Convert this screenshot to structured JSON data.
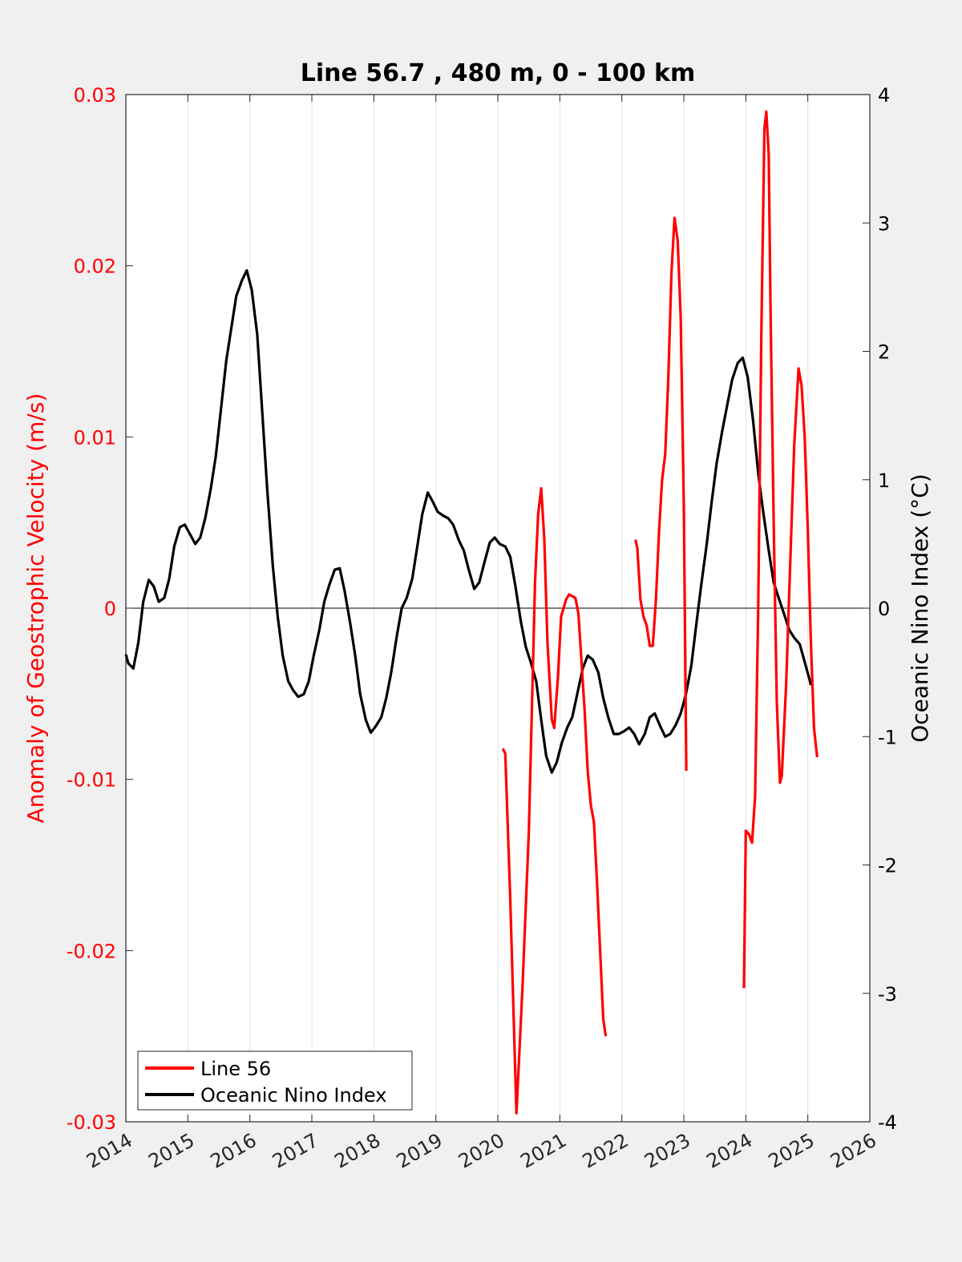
{
  "chart_data": {
    "type": "line",
    "title": "Line 56.7 , 480 m, 0 - 100 km",
    "xlim": [
      2014,
      2026
    ],
    "x_ticks": [
      "2014",
      "2015",
      "2016",
      "2017",
      "2018",
      "2019",
      "2020",
      "2021",
      "2022",
      "2023",
      "2024",
      "2025",
      "2026"
    ],
    "left_axis": {
      "label": "Anomaly of Geostrophic Velocity (m/s)",
      "color": "#ff0000",
      "ylim": [
        -0.03,
        0.03
      ],
      "ticks": [
        "-0.03",
        "-0.02",
        "-0.01",
        "0",
        "0.01",
        "0.02",
        "0.03"
      ]
    },
    "right_axis": {
      "label": "Oceanic Nino Index (°C)",
      "color": "#000000",
      "ylim": [
        -4,
        4
      ],
      "ticks": [
        "-4",
        "-3",
        "-2",
        "-1",
        "0",
        "1",
        "2",
        "3",
        "4"
      ]
    },
    "grid": "vertical",
    "zero_line": true,
    "legend": {
      "position": "bottom-left",
      "entries": [
        {
          "name": "Line 56",
          "color": "#ff0000"
        },
        {
          "name": "Oceanic Nino Index",
          "color": "#000000"
        }
      ]
    },
    "series": [
      {
        "name": "Line 56",
        "axis": "left",
        "color": "#ff0000",
        "segments": [
          [
            [
              2020.08,
              -0.0082
            ],
            [
              2020.12,
              -0.0085
            ],
            [
              2020.2,
              -0.017
            ],
            [
              2020.3,
              -0.0295
            ],
            [
              2020.4,
              -0.022
            ],
            [
              2020.5,
              -0.013
            ],
            [
              2020.6,
              0.0015
            ],
            [
              2020.65,
              0.0055
            ],
            [
              2020.7,
              0.007
            ],
            [
              2020.75,
              0.004
            ],
            [
              2020.8,
              -0.002
            ],
            [
              2020.87,
              -0.0065
            ],
            [
              2020.91,
              -0.007
            ],
            [
              2020.97,
              -0.004
            ],
            [
              2021.02,
              -0.0005
            ],
            [
              2021.1,
              0.0005
            ],
            [
              2021.15,
              0.0008
            ],
            [
              2021.2,
              0.0007
            ],
            [
              2021.25,
              0.0006
            ],
            [
              2021.3,
              -0.0003
            ],
            [
              2021.4,
              -0.006
            ],
            [
              2021.45,
              -0.0095
            ],
            [
              2021.5,
              -0.0115
            ],
            [
              2021.55,
              -0.0125
            ],
            [
              2021.6,
              -0.016
            ],
            [
              2021.7,
              -0.024
            ],
            [
              2021.74,
              -0.025
            ]
          ],
          [
            [
              2022.22,
              0.004
            ],
            [
              2022.25,
              0.0035
            ],
            [
              2022.3,
              0.0005
            ],
            [
              2022.35,
              -0.0005
            ],
            [
              2022.4,
              -0.001
            ],
            [
              2022.45,
              -0.0022
            ],
            [
              2022.5,
              -0.0022
            ],
            [
              2022.55,
              0.0005
            ],
            [
              2022.6,
              0.0045
            ],
            [
              2022.65,
              0.0075
            ],
            [
              2022.7,
              0.009
            ],
            [
              2022.75,
              0.0135
            ],
            [
              2022.8,
              0.0195
            ],
            [
              2022.85,
              0.0228
            ],
            [
              2022.9,
              0.0215
            ],
            [
              2022.95,
              0.017
            ],
            [
              2023.0,
              0.006
            ],
            [
              2023.04,
              -0.0095
            ]
          ],
          [
            [
              2023.97,
              -0.0222
            ],
            [
              2024.0,
              -0.013
            ],
            [
              2024.05,
              -0.0132
            ],
            [
              2024.1,
              -0.0137
            ],
            [
              2024.15,
              -0.011
            ],
            [
              2024.2,
              0.0
            ],
            [
              2024.25,
              0.016
            ],
            [
              2024.3,
              0.028
            ],
            [
              2024.33,
              0.029
            ],
            [
              2024.37,
              0.0265
            ],
            [
              2024.4,
              0.017
            ],
            [
              2024.45,
              0.005
            ],
            [
              2024.5,
              -0.0055
            ],
            [
              2024.55,
              -0.0102
            ],
            [
              2024.58,
              -0.0098
            ],
            [
              2024.65,
              -0.0045
            ],
            [
              2024.72,
              0.003
            ],
            [
              2024.78,
              0.0095
            ],
            [
              2024.85,
              0.014
            ],
            [
              2024.9,
              0.013
            ],
            [
              2024.95,
              0.01
            ],
            [
              2025.0,
              0.0045
            ],
            [
              2025.05,
              -0.002
            ],
            [
              2025.1,
              -0.007
            ],
            [
              2025.15,
              -0.0087
            ]
          ]
        ]
      },
      {
        "name": "Oceanic Nino Index",
        "axis": "right",
        "color": "#000000",
        "points": [
          [
            2014.0,
            -0.36
          ],
          [
            2014.04,
            -0.43
          ],
          [
            2014.12,
            -0.47
          ],
          [
            2014.2,
            -0.27
          ],
          [
            2014.28,
            0.05
          ],
          [
            2014.37,
            0.22
          ],
          [
            2014.45,
            0.17
          ],
          [
            2014.53,
            0.05
          ],
          [
            2014.62,
            0.08
          ],
          [
            2014.7,
            0.23
          ],
          [
            2014.78,
            0.48
          ],
          [
            2014.87,
            0.63
          ],
          [
            2014.95,
            0.65
          ],
          [
            2015.03,
            0.58
          ],
          [
            2015.12,
            0.5
          ],
          [
            2015.2,
            0.55
          ],
          [
            2015.28,
            0.7
          ],
          [
            2015.37,
            0.93
          ],
          [
            2015.45,
            1.18
          ],
          [
            2015.53,
            1.53
          ],
          [
            2015.62,
            1.93
          ],
          [
            2015.7,
            2.18
          ],
          [
            2015.78,
            2.43
          ],
          [
            2015.87,
            2.55
          ],
          [
            2015.95,
            2.63
          ],
          [
            2016.03,
            2.48
          ],
          [
            2016.12,
            2.13
          ],
          [
            2016.2,
            1.53
          ],
          [
            2016.28,
            0.93
          ],
          [
            2016.37,
            0.33
          ],
          [
            2016.45,
            -0.07
          ],
          [
            2016.53,
            -0.37
          ],
          [
            2016.62,
            -0.57
          ],
          [
            2016.7,
            -0.64
          ],
          [
            2016.78,
            -0.69
          ],
          [
            2016.87,
            -0.67
          ],
          [
            2016.95,
            -0.57
          ],
          [
            2017.03,
            -0.37
          ],
          [
            2017.12,
            -0.17
          ],
          [
            2017.2,
            0.05
          ],
          [
            2017.28,
            0.18
          ],
          [
            2017.37,
            0.3
          ],
          [
            2017.45,
            0.31
          ],
          [
            2017.53,
            0.13
          ],
          [
            2017.62,
            -0.12
          ],
          [
            2017.7,
            -0.37
          ],
          [
            2017.78,
            -0.67
          ],
          [
            2017.87,
            -0.87
          ],
          [
            2017.95,
            -0.97
          ],
          [
            2018.03,
            -0.92
          ],
          [
            2018.12,
            -0.85
          ],
          [
            2018.2,
            -0.7
          ],
          [
            2018.28,
            -0.5
          ],
          [
            2018.37,
            -0.22
          ],
          [
            2018.45,
            0.0
          ],
          [
            2018.53,
            0.08
          ],
          [
            2018.62,
            0.23
          ],
          [
            2018.7,
            0.48
          ],
          [
            2018.78,
            0.73
          ],
          [
            2018.87,
            0.9
          ],
          [
            2018.95,
            0.83
          ],
          [
            2019.03,
            0.75
          ],
          [
            2019.12,
            0.72
          ],
          [
            2019.2,
            0.7
          ],
          [
            2019.28,
            0.65
          ],
          [
            2019.37,
            0.53
          ],
          [
            2019.45,
            0.45
          ],
          [
            2019.53,
            0.3
          ],
          [
            2019.62,
            0.15
          ],
          [
            2019.7,
            0.2
          ],
          [
            2019.78,
            0.35
          ],
          [
            2019.87,
            0.51
          ],
          [
            2019.95,
            0.55
          ],
          [
            2020.03,
            0.5
          ],
          [
            2020.12,
            0.48
          ],
          [
            2020.2,
            0.4
          ],
          [
            2020.28,
            0.18
          ],
          [
            2020.37,
            -0.1
          ],
          [
            2020.45,
            -0.3
          ],
          [
            2020.53,
            -0.42
          ],
          [
            2020.62,
            -0.57
          ],
          [
            2020.7,
            -0.87
          ],
          [
            2020.78,
            -1.15
          ],
          [
            2020.87,
            -1.28
          ],
          [
            2020.95,
            -1.2
          ],
          [
            2021.03,
            -1.05
          ],
          [
            2021.12,
            -0.93
          ],
          [
            2021.2,
            -0.85
          ],
          [
            2021.28,
            -0.67
          ],
          [
            2021.37,
            -0.47
          ],
          [
            2021.45,
            -0.37
          ],
          [
            2021.53,
            -0.4
          ],
          [
            2021.62,
            -0.5
          ],
          [
            2021.7,
            -0.7
          ],
          [
            2021.78,
            -0.85
          ],
          [
            2021.87,
            -0.98
          ],
          [
            2021.95,
            -0.98
          ],
          [
            2022.03,
            -0.96
          ],
          [
            2022.12,
            -0.93
          ],
          [
            2022.2,
            -0.98
          ],
          [
            2022.28,
            -1.06
          ],
          [
            2022.37,
            -0.98
          ],
          [
            2022.45,
            -0.85
          ],
          [
            2022.53,
            -0.82
          ],
          [
            2022.62,
            -0.92
          ],
          [
            2022.7,
            -1.0
          ],
          [
            2022.78,
            -0.98
          ],
          [
            2022.87,
            -0.91
          ],
          [
            2022.95,
            -0.82
          ],
          [
            2023.03,
            -0.68
          ],
          [
            2023.12,
            -0.45
          ],
          [
            2023.2,
            -0.13
          ],
          [
            2023.28,
            0.18
          ],
          [
            2023.37,
            0.5
          ],
          [
            2023.45,
            0.83
          ],
          [
            2023.53,
            1.13
          ],
          [
            2023.62,
            1.38
          ],
          [
            2023.7,
            1.58
          ],
          [
            2023.78,
            1.78
          ],
          [
            2023.87,
            1.91
          ],
          [
            2023.95,
            1.95
          ],
          [
            2024.03,
            1.8
          ],
          [
            2024.12,
            1.45
          ],
          [
            2024.2,
            1.05
          ],
          [
            2024.28,
            0.75
          ],
          [
            2024.37,
            0.45
          ],
          [
            2024.45,
            0.2
          ],
          [
            2024.53,
            0.08
          ],
          [
            2024.62,
            -0.05
          ],
          [
            2024.7,
            -0.17
          ],
          [
            2024.78,
            -0.23
          ],
          [
            2024.87,
            -0.28
          ],
          [
            2024.95,
            -0.42
          ],
          [
            2025.03,
            -0.56
          ],
          [
            2025.05,
            -0.6
          ]
        ]
      }
    ]
  }
}
